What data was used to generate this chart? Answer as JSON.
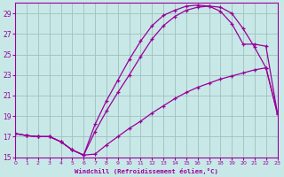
{
  "xlabel": "Windchill (Refroidissement éolien,°C)",
  "bg_color": "#c8e8e8",
  "grid_color": "#a0c0c0",
  "line_color": "#990099",
  "xlim": [
    0,
    23
  ],
  "ylim": [
    15,
    30
  ],
  "xticks": [
    0,
    1,
    2,
    3,
    4,
    5,
    6,
    7,
    8,
    9,
    10,
    11,
    12,
    13,
    14,
    15,
    16,
    17,
    18,
    19,
    20,
    21,
    22,
    23
  ],
  "yticks": [
    15,
    17,
    19,
    21,
    23,
    25,
    27,
    29
  ],
  "series1_x": [
    0,
    1,
    2,
    3,
    4,
    5,
    6,
    7,
    8,
    9,
    10,
    11,
    12,
    13,
    14,
    15,
    16,
    17,
    18,
    19,
    20,
    21,
    22,
    23
  ],
  "series1_y": [
    17.3,
    17.1,
    17.0,
    17.0,
    16.5,
    15.7,
    15.2,
    15.3,
    16.2,
    17.0,
    17.8,
    18.5,
    19.3,
    20.0,
    20.7,
    21.3,
    21.8,
    22.2,
    22.6,
    22.9,
    23.2,
    23.5,
    23.7,
    19.2
  ],
  "series2_x": [
    0,
    1,
    2,
    3,
    4,
    5,
    6,
    7,
    8,
    9,
    10,
    11,
    12,
    13,
    14,
    15,
    16,
    17,
    18,
    19,
    20,
    21,
    22,
    23
  ],
  "series2_y": [
    17.3,
    17.1,
    17.0,
    17.0,
    16.5,
    15.7,
    15.2,
    18.2,
    20.5,
    22.5,
    24.5,
    26.3,
    27.8,
    28.8,
    29.3,
    29.7,
    29.8,
    29.7,
    29.2,
    28.0,
    26.0,
    26.0,
    25.8,
    19.3
  ],
  "series3_x": [
    0,
    1,
    2,
    3,
    4,
    5,
    6,
    7,
    8,
    9,
    10,
    11,
    12,
    13,
    14,
    15,
    16,
    17,
    18,
    19,
    20,
    21,
    22,
    23
  ],
  "series3_y": [
    17.3,
    17.1,
    17.0,
    17.0,
    16.5,
    15.7,
    15.2,
    17.5,
    19.5,
    21.3,
    23.0,
    24.8,
    26.5,
    27.8,
    28.7,
    29.3,
    29.6,
    29.7,
    29.6,
    29.0,
    27.5,
    25.7,
    23.7,
    19.3
  ]
}
